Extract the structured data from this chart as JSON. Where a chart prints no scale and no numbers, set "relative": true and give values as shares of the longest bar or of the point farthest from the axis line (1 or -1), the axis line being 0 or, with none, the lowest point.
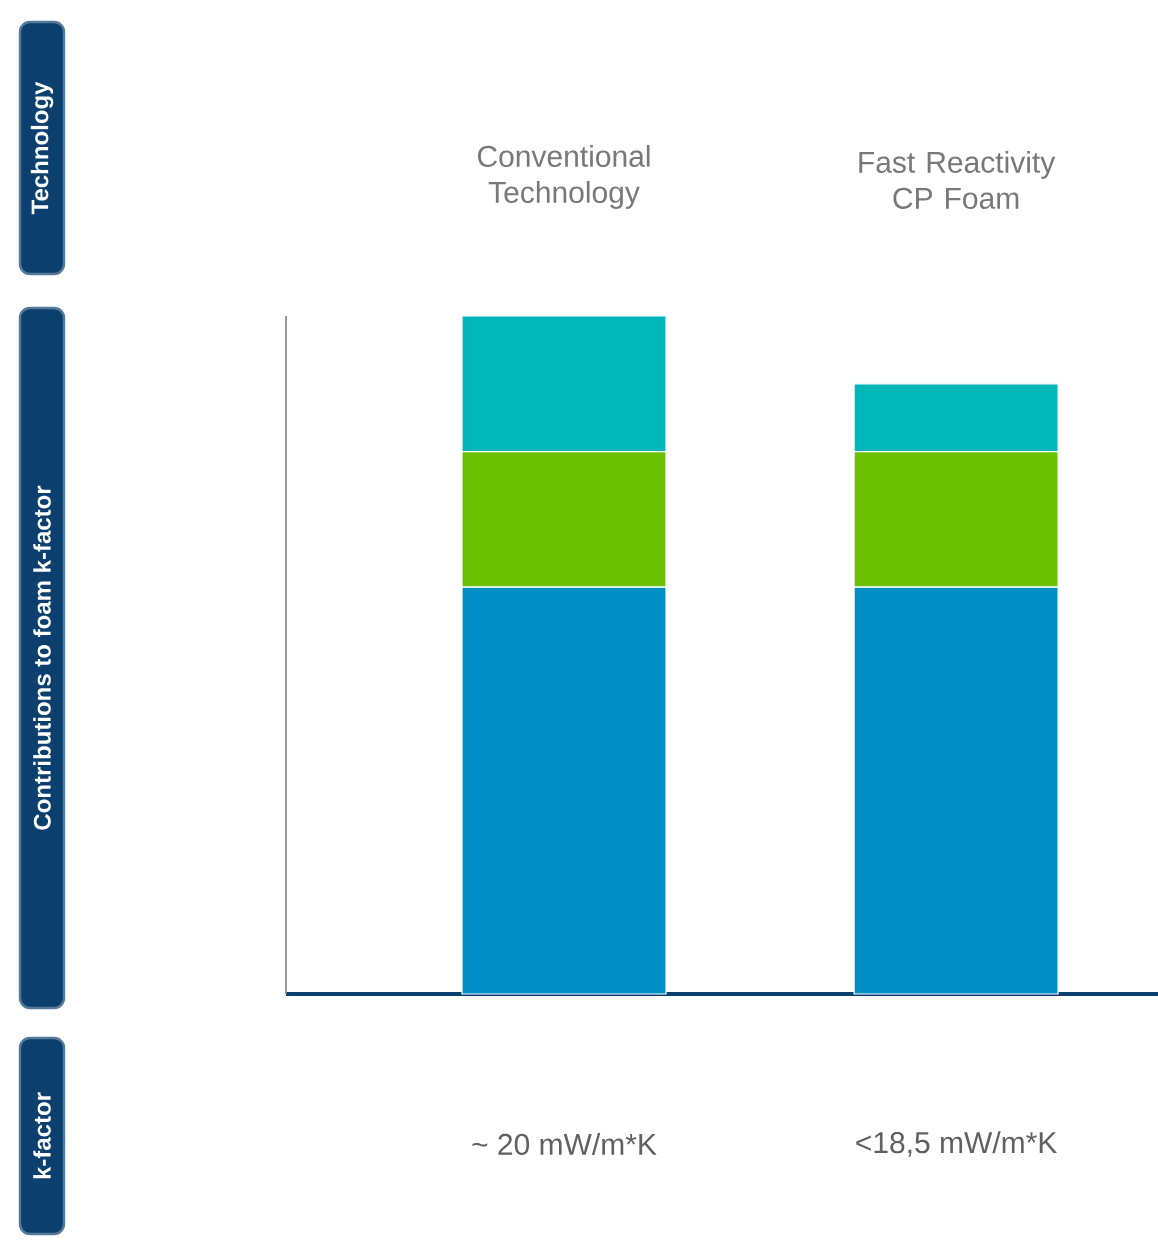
{
  "chart_data": {
    "type": "bar",
    "stacked": true,
    "relative": true,
    "categories": [
      "Conventional Technology",
      "Fast Reactivity CP Foam"
    ],
    "series": [
      {
        "color": "#008fc5",
        "values": [
          0.6,
          0.6
        ]
      },
      {
        "color": "#6bc100",
        "values": [
          0.2,
          0.2
        ]
      },
      {
        "color": "#00b6b8",
        "values": [
          0.2,
          0.1
        ]
      }
    ],
    "annotations": [
      "Technology",
      "Contributions to foam k-factor",
      "k-factor",
      "~ 20 mW/m*K",
      "<18,5 mW/m*K"
    ]
  }
}
